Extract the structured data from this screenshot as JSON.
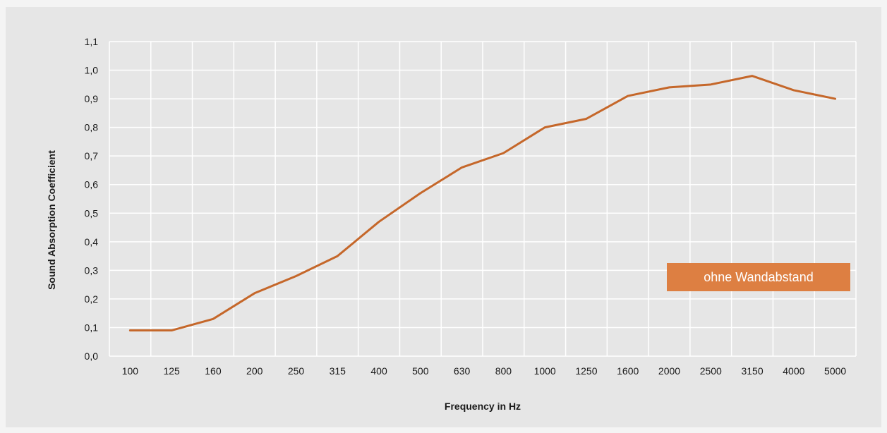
{
  "chart_data": {
    "type": "line",
    "title": "",
    "xlabel": "Frequency in Hz",
    "ylabel": "Sound Absorption Coefficient",
    "categories": [
      "100",
      "125",
      "160",
      "200",
      "250",
      "315",
      "400",
      "500",
      "630",
      "800",
      "1000",
      "1250",
      "1600",
      "2000",
      "2500",
      "3150",
      "4000",
      "5000"
    ],
    "y_tick_labels": [
      "0,0",
      "0,1",
      "0,2",
      "0,3",
      "0,4",
      "0,5",
      "0,6",
      "0,7",
      "0,8",
      "0,9",
      "1,0",
      "1,1"
    ],
    "ylim": [
      0,
      1.1
    ],
    "grid": true,
    "legend_position": "bottom-right",
    "series": [
      {
        "name": "ohne Wandabstand",
        "color": "#c5672a",
        "values": [
          0.09,
          0.09,
          0.13,
          0.22,
          0.28,
          0.35,
          0.47,
          0.57,
          0.66,
          0.71,
          0.8,
          0.83,
          0.91,
          0.94,
          0.95,
          0.98,
          0.93,
          0.9
        ]
      }
    ]
  },
  "colors": {
    "background": "#e6e6e6",
    "grid": "#ffffff",
    "legend_fill": "#dd7f42"
  }
}
